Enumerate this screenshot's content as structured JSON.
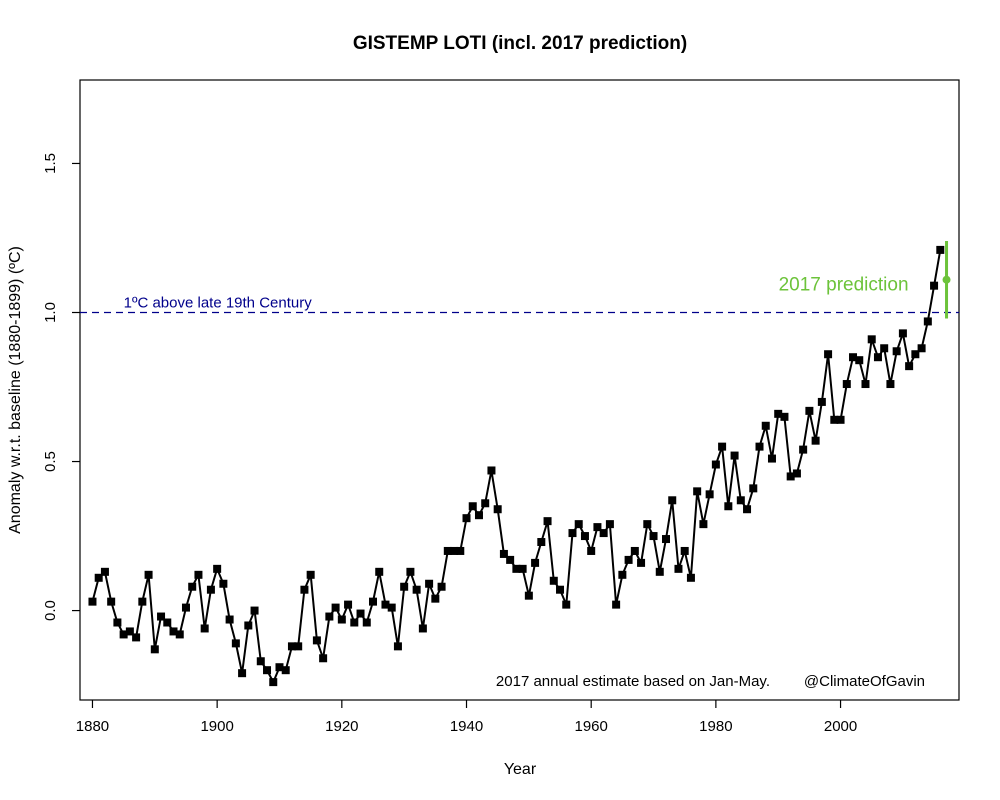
{
  "chart_data": {
    "type": "line",
    "title": "GISTEMP LOTI (incl. 2017 prediction)",
    "xlabel": "Year",
    "ylabel": "Anomaly w.r.t. baseline (1880-1899) (ºC)",
    "xlim": [
      1878,
      2019
    ],
    "ylim": [
      -0.3,
      1.78
    ],
    "x_ticks": [
      1880,
      1900,
      1920,
      1940,
      1960,
      1980,
      2000
    ],
    "y_ticks": [
      0.0,
      0.5,
      1.0,
      1.5
    ],
    "y_tick_labels": [
      "0.0",
      "0.5",
      "1.0",
      "1.5"
    ],
    "grid": false,
    "series": [
      {
        "x": [
          1880,
          1881,
          1882,
          1883,
          1884,
          1885,
          1886,
          1887,
          1888,
          1889,
          1890,
          1891,
          1892,
          1893,
          1894,
          1895,
          1896,
          1897,
          1898,
          1899,
          1900,
          1901,
          1902,
          1903,
          1904,
          1905,
          1906,
          1907,
          1908,
          1909,
          1910,
          1911,
          1912,
          1913,
          1914,
          1915,
          1916,
          1917,
          1918,
          1919,
          1920,
          1921,
          1922,
          1923,
          1924,
          1925,
          1926,
          1927,
          1928,
          1929,
          1930,
          1931,
          1932,
          1933,
          1934,
          1935,
          1936,
          1937,
          1938,
          1939,
          1940,
          1941,
          1942,
          1943,
          1944,
          1945,
          1946,
          1947,
          1948,
          1949,
          1950,
          1951,
          1952,
          1953,
          1954,
          1955,
          1956,
          1957,
          1958,
          1959,
          1960,
          1961,
          1962,
          1963,
          1964,
          1965,
          1966,
          1967,
          1968,
          1969,
          1970,
          1971,
          1972,
          1973,
          1974,
          1975,
          1976,
          1977,
          1978,
          1979,
          1980,
          1981,
          1982,
          1983,
          1984,
          1985,
          1986,
          1987,
          1988,
          1989,
          1990,
          1991,
          1992,
          1993,
          1994,
          1995,
          1996,
          1997,
          1998,
          1999,
          2000,
          2001,
          2002,
          2003,
          2004,
          2005,
          2006,
          2007,
          2008,
          2009,
          2010,
          2011,
          2012,
          2013,
          2014,
          2015,
          2016
        ],
        "values": [
          0.03,
          0.11,
          0.13,
          0.03,
          -0.04,
          -0.08,
          -0.07,
          -0.09,
          0.03,
          0.12,
          -0.13,
          -0.02,
          -0.04,
          -0.07,
          -0.08,
          0.01,
          0.08,
          0.12,
          -0.06,
          0.07,
          0.14,
          0.09,
          -0.03,
          -0.11,
          -0.21,
          -0.05,
          0.0,
          -0.17,
          -0.2,
          -0.24,
          -0.19,
          -0.2,
          -0.12,
          -0.12,
          0.07,
          0.12,
          -0.1,
          -0.16,
          -0.02,
          0.01,
          -0.03,
          0.02,
          -0.04,
          -0.01,
          -0.04,
          0.03,
          0.13,
          0.02,
          0.01,
          -0.12,
          0.08,
          0.13,
          0.07,
          -0.06,
          0.09,
          0.04,
          0.08,
          0.2,
          0.2,
          0.2,
          0.31,
          0.35,
          0.32,
          0.36,
          0.47,
          0.34,
          0.19,
          0.17,
          0.14,
          0.14,
          0.05,
          0.16,
          0.23,
          0.3,
          0.1,
          0.07,
          0.02,
          0.26,
          0.29,
          0.25,
          0.2,
          0.28,
          0.26,
          0.29,
          0.02,
          0.12,
          0.17,
          0.2,
          0.16,
          0.29,
          0.25,
          0.13,
          0.24,
          0.37,
          0.14,
          0.2,
          0.11,
          0.4,
          0.29,
          0.39,
          0.49,
          0.55,
          0.35,
          0.52,
          0.37,
          0.34,
          0.41,
          0.55,
          0.62,
          0.51,
          0.66,
          0.65,
          0.45,
          0.46,
          0.54,
          0.67,
          0.57,
          0.7,
          0.86,
          0.64,
          0.64,
          0.76,
          0.85,
          0.84,
          0.76,
          0.91,
          0.85,
          0.88,
          0.76,
          0.87,
          0.93,
          0.82,
          0.86,
          0.88,
          0.97,
          1.09,
          1.21
        ]
      }
    ],
    "prediction": {
      "x": 2017,
      "value": 1.11,
      "low": 0.98,
      "high": 1.24,
      "label": "2017 prediction"
    },
    "reference_line": {
      "value": 1.0,
      "label": "1ºC above late 19th Century",
      "label_x": 1885
    },
    "annotations": {
      "footnote": "2017 annual estimate based on Jan-May.",
      "credit": "@ClimateOfGavin"
    },
    "colors": {
      "series": "#000000",
      "reference": "#00008b",
      "prediction": "#6cc33a"
    }
  }
}
